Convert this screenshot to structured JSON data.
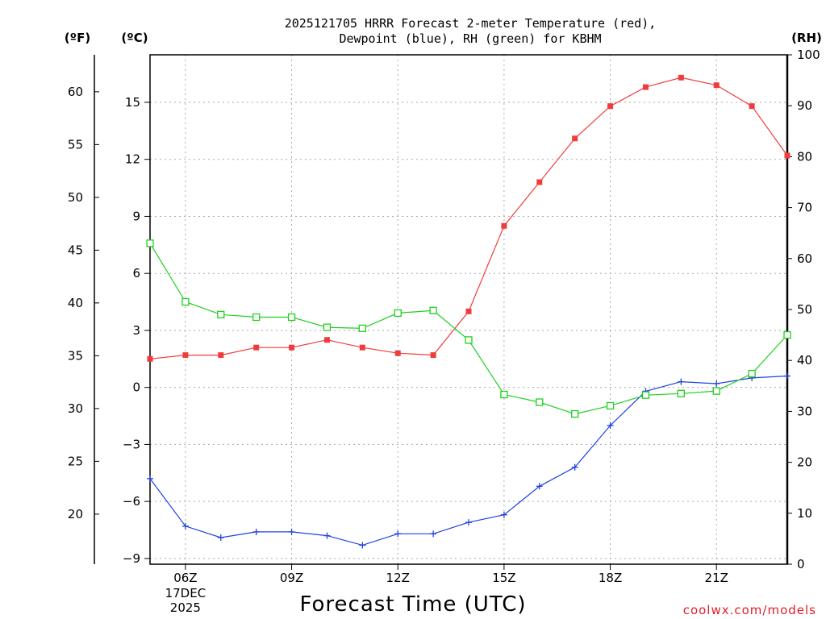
{
  "chart_data": {
    "type": "line",
    "title": "2025121705 HRRR Forecast 2-meter Temperature (red),",
    "subtitle": "Dewpoint (blue), RH (green) for KBHM",
    "xlabel": "Forecast Time (UTC)",
    "credit": "coolwx.com/models",
    "units": {
      "fahrenheit": "(ºF)",
      "celsius": "(ºC)",
      "rh": "(RH)"
    },
    "x_hours": [
      5,
      6,
      7,
      8,
      9,
      10,
      11,
      12,
      13,
      14,
      15,
      16,
      17,
      18,
      19,
      20,
      21,
      22,
      23
    ],
    "xlim": [
      5,
      23
    ],
    "x_ticks": [
      {
        "hour": 6,
        "label": "06Z",
        "sub1": "17DEC",
        "sub2": "2025"
      },
      {
        "hour": 9,
        "label": "09Z"
      },
      {
        "hour": 12,
        "label": "12Z"
      },
      {
        "hour": 15,
        "label": "15Z"
      },
      {
        "hour": 18,
        "label": "18Z"
      },
      {
        "hour": 21,
        "label": "21Z"
      }
    ],
    "celsius_axis": {
      "ylim": [
        -9.3,
        17.5
      ],
      "ticks": [
        -9,
        -6,
        -3,
        0,
        3,
        6,
        9,
        12,
        15
      ],
      "tick_labels": [
        "−9",
        "−6",
        "−3",
        "0",
        "3",
        "6",
        "9",
        "12",
        "15"
      ]
    },
    "fahrenheit_axis": {
      "ticks": [
        20,
        25,
        30,
        35,
        40,
        45,
        50,
        55,
        60
      ],
      "tick_labels": [
        "20",
        "25",
        "30",
        "35",
        "40",
        "45",
        "50",
        "55",
        "60"
      ]
    },
    "rh_axis": {
      "ylim": [
        0,
        100
      ],
      "ticks": [
        0,
        10,
        20,
        30,
        40,
        50,
        60,
        70,
        80,
        90,
        100
      ],
      "tick_labels": [
        "0",
        "10",
        "20",
        "30",
        "40",
        "50",
        "60",
        "70",
        "80",
        "90",
        "100"
      ]
    },
    "series": [
      {
        "name": "Temperature",
        "unit": "C",
        "axis": "celsius",
        "color": "#f03c3c",
        "marker": "filled-square",
        "values": [
          1.5,
          1.7,
          1.7,
          2.1,
          2.1,
          2.5,
          2.1,
          1.8,
          1.7,
          4.0,
          8.5,
          10.8,
          13.1,
          14.8,
          15.8,
          16.3,
          15.9,
          14.8,
          12.2
        ]
      },
      {
        "name": "Dewpoint",
        "unit": "C",
        "axis": "celsius",
        "color": "#2040e0",
        "marker": "plus",
        "values": [
          -4.8,
          -7.3,
          -7.9,
          -7.6,
          -7.6,
          -7.8,
          -8.3,
          -7.7,
          -7.7,
          -7.1,
          -6.7,
          -5.2,
          -4.2,
          -2.0,
          -0.2,
          0.3,
          0.2,
          0.5,
          0.6
        ]
      },
      {
        "name": "RH",
        "unit": "%",
        "axis": "rh",
        "color": "#20d020",
        "marker": "open-square",
        "values": [
          63,
          51.5,
          49,
          48.5,
          48.5,
          46.5,
          46.3,
          49.3,
          49.8,
          44,
          33.3,
          31.8,
          29.5,
          31.1,
          33.2,
          33.5,
          34,
          37.4,
          45
        ]
      }
    ]
  }
}
